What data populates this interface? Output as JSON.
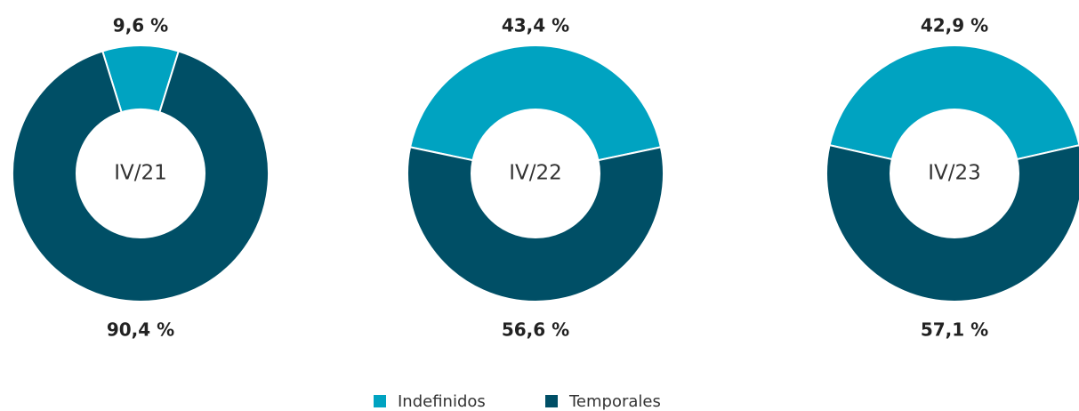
{
  "chart_data": [
    {
      "type": "pie",
      "title": "IV/21",
      "categories": [
        "Indefinidos",
        "Temporales"
      ],
      "values": [
        9.6,
        90.4
      ],
      "value_labels": [
        "9,6 %",
        "90,4 %"
      ],
      "colors": [
        "#00a3c1",
        "#004f66"
      ]
    },
    {
      "type": "pie",
      "title": "IV/22",
      "categories": [
        "Indefinidos",
        "Temporales"
      ],
      "values": [
        43.4,
        56.6
      ],
      "value_labels": [
        "43,4 %",
        "56,6 %"
      ],
      "colors": [
        "#00a3c1",
        "#004f66"
      ]
    },
    {
      "type": "pie",
      "title": "IV/23",
      "categories": [
        "Indefinidos",
        "Temporales"
      ],
      "values": [
        42.9,
        57.1
      ],
      "value_labels": [
        "42,9 %",
        "57,1 %"
      ],
      "colors": [
        "#00a3c1",
        "#004f66"
      ]
    }
  ]
}
